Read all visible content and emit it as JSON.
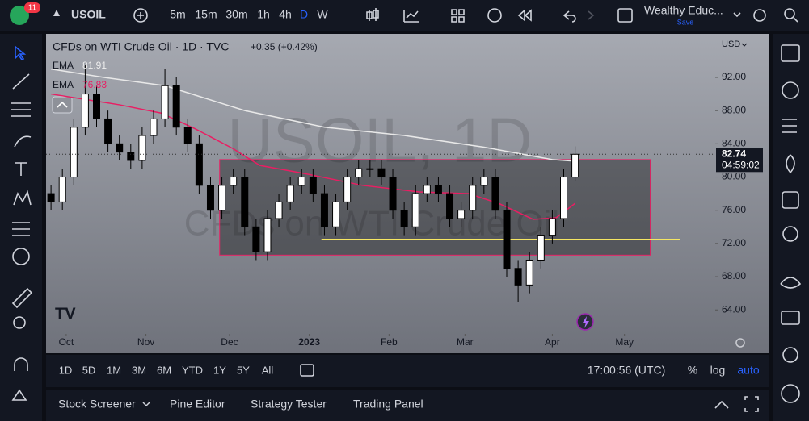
{
  "top_toolbar": {
    "badge": "11",
    "symbol": "USOIL",
    "intervals": [
      "5m",
      "15m",
      "30m",
      "1h",
      "4h",
      "D",
      "W"
    ],
    "layout_name": "Wealthy Educ...",
    "save": "Save"
  },
  "legend": {
    "title": "CFDs on WTI Crude Oil · 1D · TVC",
    "change": "+0.35 (+0.42%)"
  },
  "chart_data": {
    "type": "candlestick",
    "x": [
      -4,
      -1,
      2,
      5,
      8,
      11,
      14,
      17,
      20,
      23,
      26,
      29,
      32,
      35,
      38,
      41,
      44,
      47,
      50,
      53,
      56,
      59,
      62,
      65,
      68,
      71,
      74,
      77,
      80,
      83,
      86,
      89,
      92,
      95,
      98,
      101,
      104,
      107,
      110,
      113,
      116,
      119,
      122,
      125,
      128,
      131,
      134
    ],
    "open": [
      78,
      77,
      80,
      86,
      90,
      87,
      84,
      83,
      82,
      85,
      87,
      91,
      86,
      84,
      79,
      76,
      79,
      80,
      74,
      71,
      75,
      77,
      79,
      80,
      78,
      74,
      77,
      80,
      81,
      81,
      80,
      76,
      74,
      78,
      79,
      78,
      75,
      76,
      79,
      80,
      76,
      69,
      67,
      70,
      73,
      75,
      80
    ],
    "high": [
      79,
      81,
      87,
      93.5,
      91,
      88,
      85,
      84,
      86,
      88,
      93,
      92,
      87,
      85,
      80,
      80,
      81,
      81,
      75,
      76,
      78,
      80,
      81,
      81,
      79,
      78,
      81,
      82,
      82,
      82,
      81,
      77,
      79,
      80,
      80,
      79,
      77,
      80,
      81,
      81,
      77,
      70,
      71,
      74,
      76,
      81,
      83.7
    ],
    "low": [
      76,
      76,
      79,
      85,
      86,
      83,
      82,
      81,
      81,
      84,
      86,
      85,
      83,
      78,
      75,
      75,
      78,
      73,
      70,
      70,
      74,
      76,
      78,
      77,
      73,
      73,
      76,
      79,
      80,
      79,
      75,
      73,
      73,
      77,
      77,
      74,
      74,
      75,
      78,
      75,
      68,
      65,
      66,
      69,
      72,
      74,
      79.5
    ],
    "close": [
      77,
      80,
      86,
      90,
      87,
      84,
      83,
      82,
      85,
      87,
      91,
      86,
      84,
      79,
      76,
      79,
      80,
      74,
      71,
      75,
      77,
      79,
      80,
      78,
      74,
      77,
      80,
      81,
      81,
      80,
      76,
      74,
      78,
      79,
      78,
      75,
      76,
      79,
      80,
      76,
      69,
      67,
      70,
      73,
      75,
      80,
      82.74
    ],
    "up_color": "#ffffff",
    "down_color": "#000000",
    "series": [
      {
        "name": "EMA",
        "color": "#e8e8e8",
        "x": [
          -4,
          10,
          26,
          47,
          68,
          89,
          110,
          128,
          134
        ],
        "values": [
          93,
          92,
          91,
          88,
          86,
          85,
          83.6,
          82.1,
          81.91
        ]
      },
      {
        "name": "EMA",
        "color": "#e91e63",
        "x": [
          -4,
          14,
          25,
          34,
          44,
          51,
          63,
          78,
          93,
          106,
          114,
          123,
          129,
          134
        ],
        "values": [
          90,
          88.7,
          87.7,
          85.8,
          83.4,
          81.4,
          80.4,
          79,
          78.2,
          78,
          76.8,
          74.9,
          75.1,
          76.83
        ]
      }
    ],
    "xlim": [
      -5.3,
      170.9
    ],
    "xticks": [
      {
        "value": 0,
        "label": "Oct"
      },
      {
        "value": 21,
        "label": "Nov"
      },
      {
        "value": 43,
        "label": "Dec"
      },
      {
        "value": 64,
        "label": "2023"
      },
      {
        "value": 85,
        "label": "Feb"
      },
      {
        "value": 105,
        "label": "Mar"
      },
      {
        "value": 128,
        "label": "Apr"
      },
      {
        "value": 147,
        "label": "May"
      }
    ],
    "ylim": [
      61.5,
      96.95
    ],
    "yticks": [
      {
        "value": 64,
        "label": "64.00"
      },
      {
        "value": 68,
        "label": "68.00"
      },
      {
        "value": 72,
        "label": "72.00"
      },
      {
        "value": 76,
        "label": "76.00"
      },
      {
        "value": 80,
        "label": "80.00"
      },
      {
        "value": 84,
        "label": "84.00"
      },
      {
        "value": 88,
        "label": "88.00"
      },
      {
        "value": 92,
        "label": "92.00"
      }
    ],
    "currency": "USD",
    "countdown": "04:59:02",
    "watermark": [
      "USOIL, 1D",
      "CFDs on WTI Crude Oil"
    ],
    "zone": {
      "x": [
        40.4,
        153.8
      ],
      "y": [
        70.6,
        82.1
      ],
      "color": "#e91e63"
    },
    "level": {
      "x": [
        67.2,
        161.7
      ],
      "value": 72.5,
      "color": "#f5e663"
    }
  },
  "bottom_toolbar": {
    "ranges": [
      "1D",
      "5D",
      "1M",
      "3M",
      "6M",
      "YTD",
      "1Y",
      "5Y",
      "All"
    ],
    "clock": "17:00:56 (UTC)",
    "options": [
      "%",
      "log",
      "auto"
    ]
  },
  "panel_tabs": [
    "Stock Screener",
    "Pine Editor",
    "Strategy Tester",
    "Trading Panel"
  ]
}
